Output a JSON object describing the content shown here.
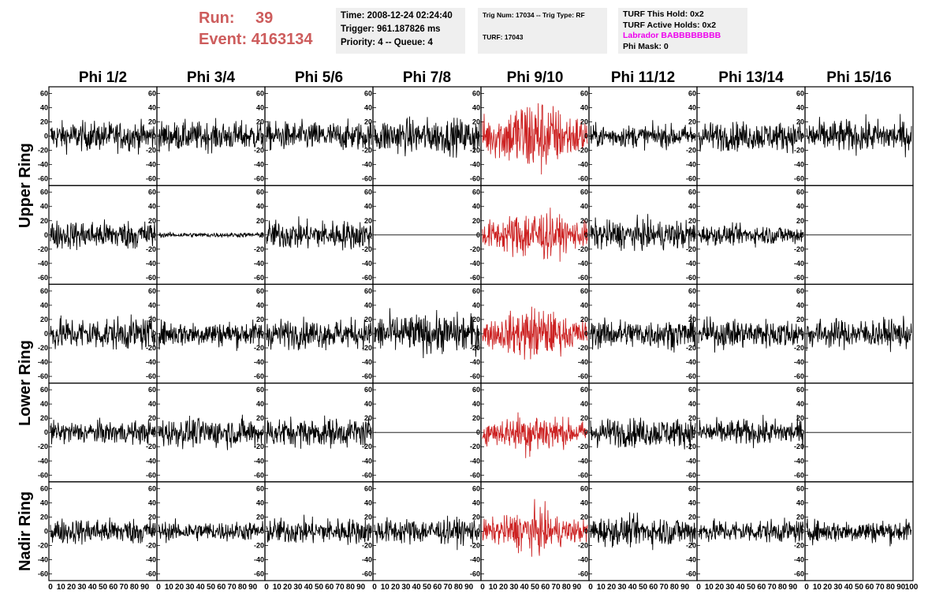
{
  "header": {
    "run_label": "Run:",
    "run_value": "39",
    "event_label": "Event:",
    "event_value": "4163134",
    "time_line": "Time: 2008-12-24 02:24:40",
    "trigger_line": "Trigger: 961.187826 ms",
    "priority_line": "Priority: 4 -- Queue: 4",
    "trig_line": "Trig Num: 17034 -- Trig Type: RF",
    "turf_line": "TURF: 17043",
    "turf_hold_line": "TURF This Hold: 0x2",
    "turf_active_line": "TURF Active Holds: 0x2",
    "labrador_line": "Labrador BABBBBBBBB",
    "phi_mask_line": "Phi Mask: 0"
  },
  "chart_data": {
    "type": "line",
    "columns": [
      "Phi 1/2",
      "Phi 3/4",
      "Phi 5/6",
      "Phi 7/8",
      "Phi 9/10",
      "Phi 11/12",
      "Phi 13/14",
      "Phi 15/16"
    ],
    "ring_labels": [
      "Upper Ring",
      "Lower Ring",
      "Nadir Ring"
    ],
    "rows": 5,
    "xlim": [
      0,
      100
    ],
    "ylim": [
      -65,
      65
    ],
    "y_ticks": [
      -60,
      -40,
      -20,
      0,
      20,
      40,
      60
    ],
    "x_ticks": [
      0,
      10,
      20,
      30,
      40,
      50,
      60,
      70,
      80,
      90,
      100
    ],
    "trace_color": "#000000",
    "highlight_color": "#cc2222",
    "highlight_column": 4,
    "panel_amplitudes": [
      [
        18,
        18,
        18,
        22,
        45,
        14,
        18,
        20
      ],
      [
        18,
        3,
        18,
        0,
        30,
        18,
        12,
        0
      ],
      [
        20,
        16,
        18,
        24,
        30,
        18,
        18,
        18
      ],
      [
        14,
        18,
        18,
        0,
        25,
        18,
        16,
        0
      ],
      [
        16,
        12,
        16,
        16,
        25,
        18,
        14,
        14
      ]
    ]
  }
}
